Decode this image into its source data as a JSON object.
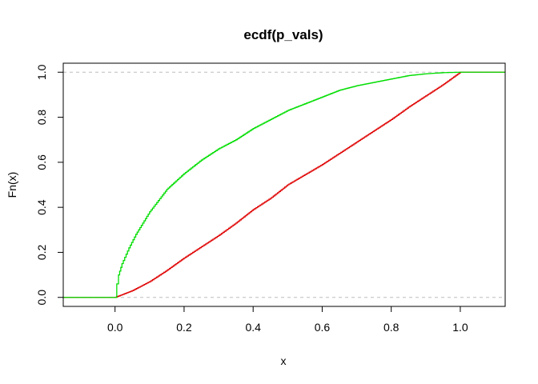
{
  "chart_data": {
    "type": "line",
    "title": "ecdf(p_vals)",
    "xlabel": "x",
    "ylabel": "Fn(x)",
    "xlim": [
      -0.15,
      1.13
    ],
    "ylim": [
      -0.04,
      1.04
    ],
    "x_ticks": [
      0.0,
      0.2,
      0.4,
      0.6,
      0.8,
      1.0
    ],
    "x_tick_labels": [
      "0.0",
      "0.2",
      "0.4",
      "0.6",
      "0.8",
      "1.0"
    ],
    "y_ticks": [
      0.0,
      0.2,
      0.4,
      0.6,
      0.8,
      1.0
    ],
    "y_tick_labels": [
      "0.0",
      "0.2",
      "0.4",
      "0.6",
      "0.8",
      "1.0"
    ],
    "reference_lines_y": [
      0,
      1
    ],
    "reference_line_color": "#BEBEBE",
    "grid": false,
    "legend": "none",
    "series": [
      {
        "color": "#DF0000",
        "points": [
          [
            -0.15,
            0
          ],
          [
            0,
            0
          ],
          [
            0.05,
            0.03
          ],
          [
            0.1,
            0.07
          ],
          [
            0.15,
            0.12
          ],
          [
            0.2,
            0.175
          ],
          [
            0.25,
            0.225
          ],
          [
            0.3,
            0.275
          ],
          [
            0.35,
            0.33
          ],
          [
            0.4,
            0.39
          ],
          [
            0.45,
            0.44
          ],
          [
            0.5,
            0.5
          ],
          [
            0.55,
            0.545
          ],
          [
            0.6,
            0.59
          ],
          [
            0.65,
            0.64
          ],
          [
            0.7,
            0.69
          ],
          [
            0.75,
            0.74
          ],
          [
            0.8,
            0.79
          ],
          [
            0.85,
            0.845
          ],
          [
            0.9,
            0.895
          ],
          [
            0.95,
            0.945
          ],
          [
            1.0,
            1.0
          ],
          [
            1.13,
            1.0
          ]
        ]
      },
      {
        "color": "#00DD00",
        "points": [
          [
            -0.15,
            0
          ],
          [
            0,
            0
          ],
          [
            0.005,
            0.06
          ],
          [
            0.01,
            0.1
          ],
          [
            0.02,
            0.15
          ],
          [
            0.04,
            0.22
          ],
          [
            0.06,
            0.28
          ],
          [
            0.08,
            0.33
          ],
          [
            0.1,
            0.38
          ],
          [
            0.125,
            0.43
          ],
          [
            0.15,
            0.48
          ],
          [
            0.2,
            0.55
          ],
          [
            0.25,
            0.61
          ],
          [
            0.3,
            0.66
          ],
          [
            0.35,
            0.7
          ],
          [
            0.4,
            0.75
          ],
          [
            0.45,
            0.79
          ],
          [
            0.5,
            0.83
          ],
          [
            0.55,
            0.86
          ],
          [
            0.6,
            0.89
          ],
          [
            0.65,
            0.92
          ],
          [
            0.7,
            0.94
          ],
          [
            0.75,
            0.955
          ],
          [
            0.8,
            0.97
          ],
          [
            0.85,
            0.985
          ],
          [
            0.9,
            0.993
          ],
          [
            0.95,
            0.998
          ],
          [
            1.0,
            1.0
          ],
          [
            1.13,
            1.0
          ]
        ]
      }
    ]
  }
}
